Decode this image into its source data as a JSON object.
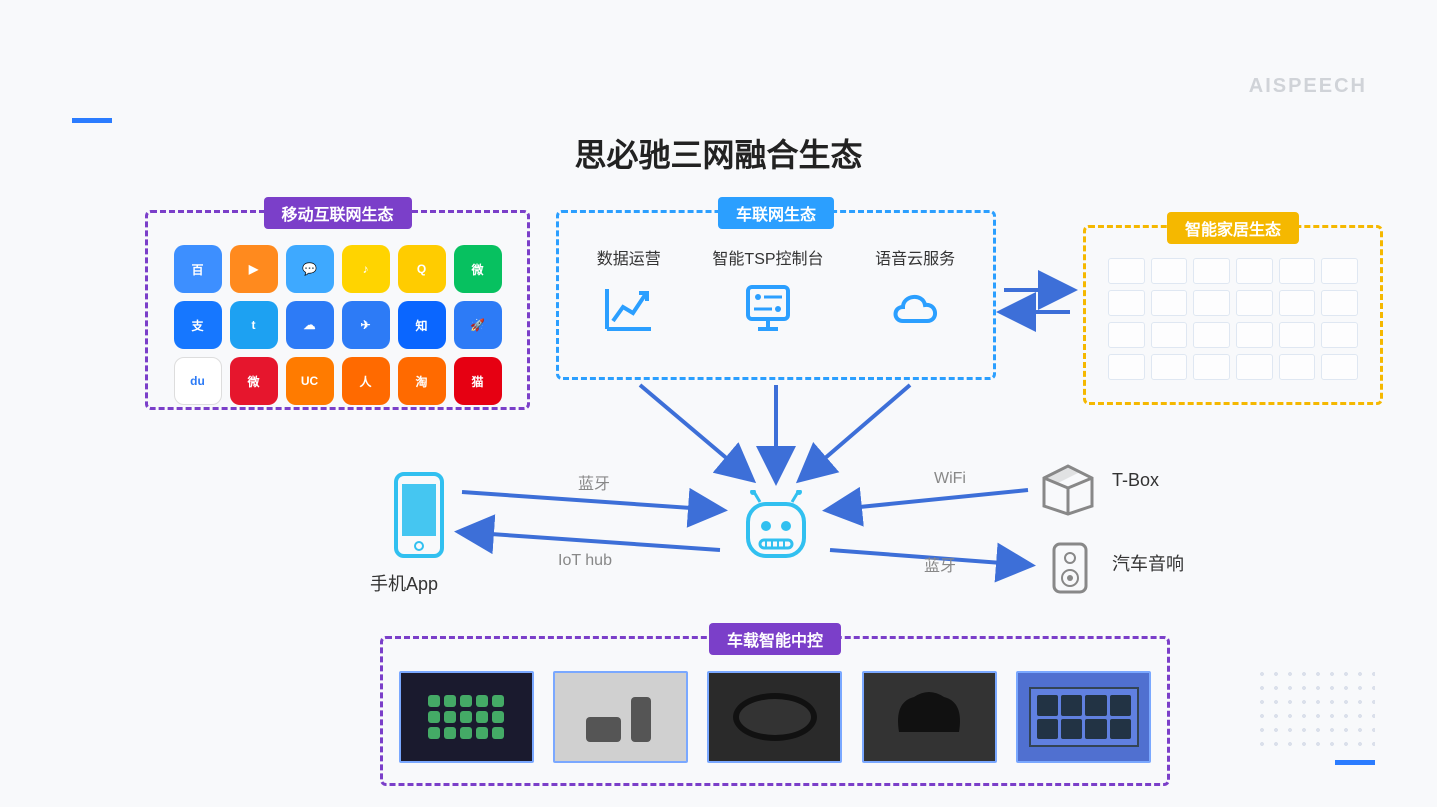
{
  "watermark": "AISPEECH",
  "title": "思必驰三网融合生态",
  "colors": {
    "purple": "#7b3fc9",
    "blue": "#2b9fff",
    "yellow": "#f5b800",
    "arrow": "#3d6fd8",
    "lightblue": "#31c0f0"
  },
  "boxes": {
    "mobile": {
      "label": "移动互联网生态"
    },
    "car": {
      "label": "车联网生态"
    },
    "home": {
      "label": "智能家居生态"
    },
    "devices": {
      "label": "车载智能中控"
    }
  },
  "carItems": [
    {
      "label": "数据运营",
      "icon": "chart"
    },
    {
      "label": "智能TSP控制台",
      "icon": "console"
    },
    {
      "label": "语音云服务",
      "icon": "cloud"
    }
  ],
  "appIcons": [
    {
      "bg": "#3d8fff",
      "txt": "百"
    },
    {
      "bg": "#ff8a1e",
      "txt": "▶"
    },
    {
      "bg": "#3ea9ff",
      "txt": "💬"
    },
    {
      "bg": "#ffd400",
      "txt": "♪"
    },
    {
      "bg": "#ffcc00",
      "txt": "Q"
    },
    {
      "bg": "#07c160",
      "txt": "微"
    },
    {
      "bg": "#1677ff",
      "txt": "支"
    },
    {
      "bg": "#1da1f2",
      "txt": "t"
    },
    {
      "bg": "#2d7bf6",
      "txt": "☁"
    },
    {
      "bg": "#2d7bf6",
      "txt": "✈"
    },
    {
      "bg": "#0a66ff",
      "txt": "知"
    },
    {
      "bg": "#2d7bf6",
      "txt": "🚀"
    },
    {
      "bg": "#ffffff",
      "txt": "du",
      "fg": "#2d7bf6"
    },
    {
      "bg": "#e6162d",
      "txt": "微"
    },
    {
      "bg": "#ff7b00",
      "txt": "UC"
    },
    {
      "bg": "#ff6a00",
      "txt": "人"
    },
    {
      "bg": "#ff6a00",
      "txt": "淘"
    },
    {
      "bg": "#e60012",
      "txt": "猫"
    }
  ],
  "peripherals": {
    "phone": "手机App",
    "tbox": "T-Box",
    "speaker": "汽车音响"
  },
  "arrowLabels": {
    "bt1": "蓝牙",
    "iothub": "IoT hub",
    "wifi": "WiFi",
    "bt2": "蓝牙"
  },
  "deviceImages": [
    {
      "bg": "#1a1a2e"
    },
    {
      "bg": "#d0d0d0"
    },
    {
      "bg": "#2a2a2a"
    },
    {
      "bg": "#333333"
    },
    {
      "bg": "#5070d0"
    }
  ]
}
